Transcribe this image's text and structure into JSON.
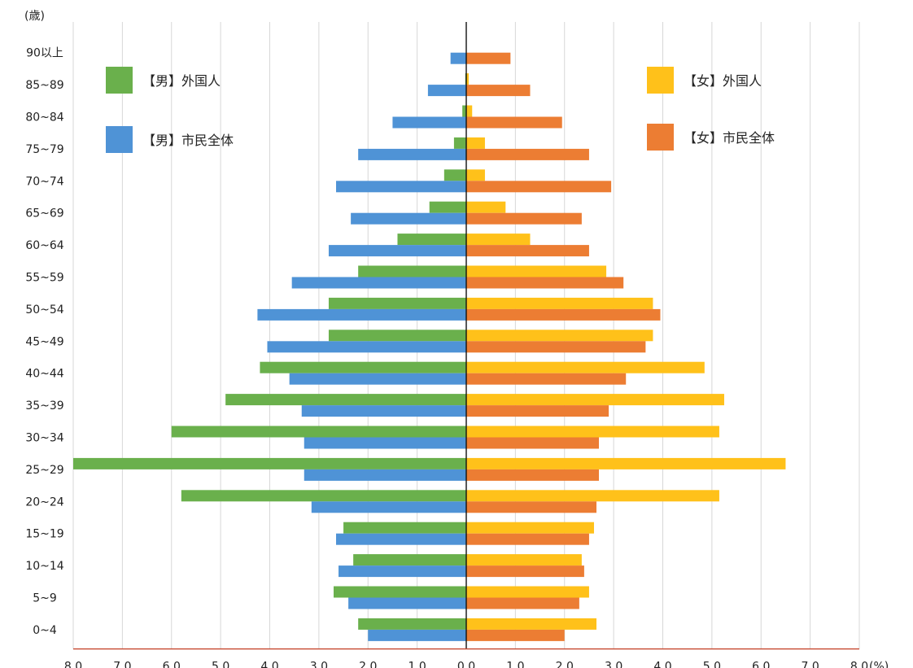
{
  "chart_data": {
    "type": "bar",
    "y_unit_label": "(歳)",
    "x_unit_label": "(%)",
    "categories": [
      "0~4",
      "5~9",
      "10~14",
      "15~19",
      "20~24",
      "25~29",
      "30~34",
      "35~39",
      "40~44",
      "45~49",
      "50~54",
      "55~59",
      "60~64",
      "65~69",
      "70~74",
      "75~79",
      "80~84",
      "85~89",
      "90以上"
    ],
    "x_ticks": [
      "8.0",
      "7.0",
      "6.0",
      "5.0",
      "4.0",
      "3.0",
      "2.0",
      "1.0",
      "0.0",
      "1.0",
      "2.0",
      "3.0",
      "4.0",
      "5.0",
      "6.0",
      "7.0",
      "8.0"
    ],
    "xlim": [
      -8.0,
      8.0
    ],
    "grid": true,
    "series": [
      {
        "name": "【男】外国人",
        "side": "left",
        "color": "#6ab04c",
        "values": [
          2.2,
          2.7,
          2.3,
          2.5,
          5.8,
          8.0,
          6.0,
          4.9,
          4.2,
          2.8,
          2.8,
          2.2,
          1.4,
          0.75,
          0.45,
          0.25,
          0.08,
          0.02,
          0.0
        ]
      },
      {
        "name": "【男】市民全体",
        "side": "left",
        "color": "#4f93d6",
        "values": [
          2.0,
          2.4,
          2.6,
          2.65,
          3.15,
          3.3,
          3.3,
          3.35,
          3.6,
          4.05,
          4.25,
          3.55,
          2.8,
          2.35,
          2.65,
          2.2,
          1.5,
          0.78,
          0.32
        ]
      },
      {
        "name": "【女】外国人",
        "side": "right",
        "color": "#ffc11a",
        "values": [
          2.65,
          2.5,
          2.35,
          2.6,
          5.15,
          6.5,
          5.15,
          5.25,
          4.85,
          3.8,
          3.8,
          2.85,
          1.3,
          0.8,
          0.38,
          0.38,
          0.12,
          0.05,
          0.0
        ]
      },
      {
        "name": "【女】市民全体",
        "side": "right",
        "color": "#ec7d33",
        "values": [
          2.0,
          2.3,
          2.4,
          2.5,
          2.65,
          2.7,
          2.7,
          2.9,
          3.25,
          3.65,
          3.95,
          3.2,
          2.5,
          2.35,
          2.95,
          2.5,
          1.95,
          1.3,
          0.9
        ]
      }
    ],
    "legend": [
      {
        "label": "【男】外国人",
        "color": "#6ab04c",
        "placement": "top-left"
      },
      {
        "label": "【男】市民全体",
        "color": "#4f93d6",
        "placement": "top-left"
      },
      {
        "label": "【女】外国人",
        "color": "#ffc11a",
        "placement": "top-right"
      },
      {
        "label": "【女】市民全体",
        "color": "#ec7d33",
        "placement": "top-right"
      }
    ]
  }
}
